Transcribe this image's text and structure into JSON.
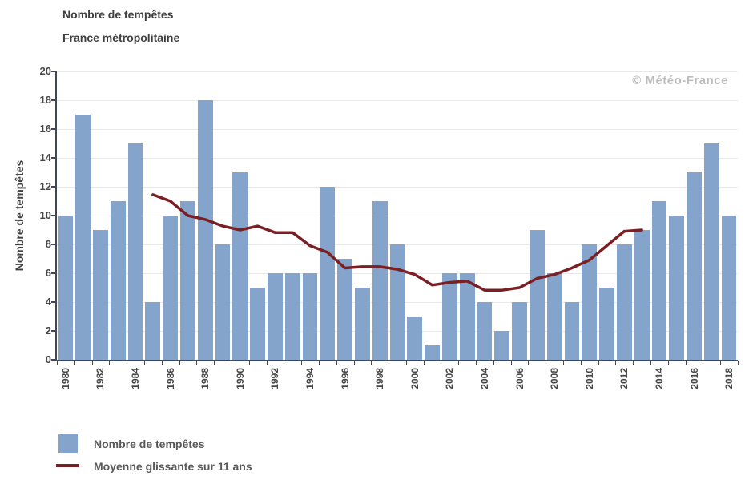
{
  "title": "Nombre de tempêtes",
  "subtitle": "France métropolitaine",
  "watermark": "© Météo-France",
  "y_axis_title": "Nombre de tempêtes",
  "legend": {
    "bar_label": "Nombre de tempêtes",
    "line_label": "Moyenne glissante sur 11 ans"
  },
  "colors": {
    "bar": "#84A4CC",
    "line": "#7A2025",
    "axis": "#3F4854",
    "grid": "#E9E9E9",
    "title_text": "#404040",
    "tick_text": "#474747",
    "legend_text": "#595959",
    "watermark": "#BDBDBD"
  },
  "chart_data": {
    "type": "bar",
    "title": "Nombre de tempêtes",
    "subtitle": "France métropolitaine",
    "xlabel": "",
    "ylabel": "Nombre de tempêtes",
    "ylim": [
      0,
      20
    ],
    "ytick_step": 2,
    "xtick_label_step": 2,
    "grid": "horizontal",
    "legend_position": "bottom-left",
    "categories": [
      1980,
      1981,
      1982,
      1983,
      1984,
      1985,
      1986,
      1987,
      1988,
      1989,
      1990,
      1991,
      1992,
      1993,
      1994,
      1995,
      1996,
      1997,
      1998,
      1999,
      2000,
      2001,
      2002,
      2003,
      2004,
      2005,
      2006,
      2007,
      2008,
      2009,
      2010,
      2011,
      2012,
      2013,
      2014,
      2015,
      2016,
      2017,
      2018
    ],
    "series": [
      {
        "name": "Nombre de tempêtes",
        "type": "bar",
        "values": [
          10,
          17,
          9,
          11,
          15,
          4,
          10,
          11,
          18,
          8,
          13,
          5,
          6,
          6,
          6,
          12,
          7,
          5,
          11,
          8,
          3,
          1,
          6,
          6,
          4,
          2,
          4,
          9,
          6,
          4,
          8,
          5,
          8,
          9,
          11,
          10,
          13,
          15,
          10
        ]
      },
      {
        "name": "Moyenne glissante sur 11 ans",
        "type": "line",
        "start_category": 1985,
        "end_category": 2013,
        "values": [
          11.45,
          11.0,
          10.0,
          9.73,
          9.27,
          9.0,
          9.27,
          8.82,
          8.82,
          7.91,
          7.45,
          6.36,
          6.45,
          6.45,
          6.27,
          5.91,
          5.18,
          5.36,
          5.45,
          4.82,
          4.82,
          5.0,
          5.64,
          5.91,
          6.36,
          6.91,
          7.91,
          8.91,
          9.0
        ]
      }
    ]
  }
}
